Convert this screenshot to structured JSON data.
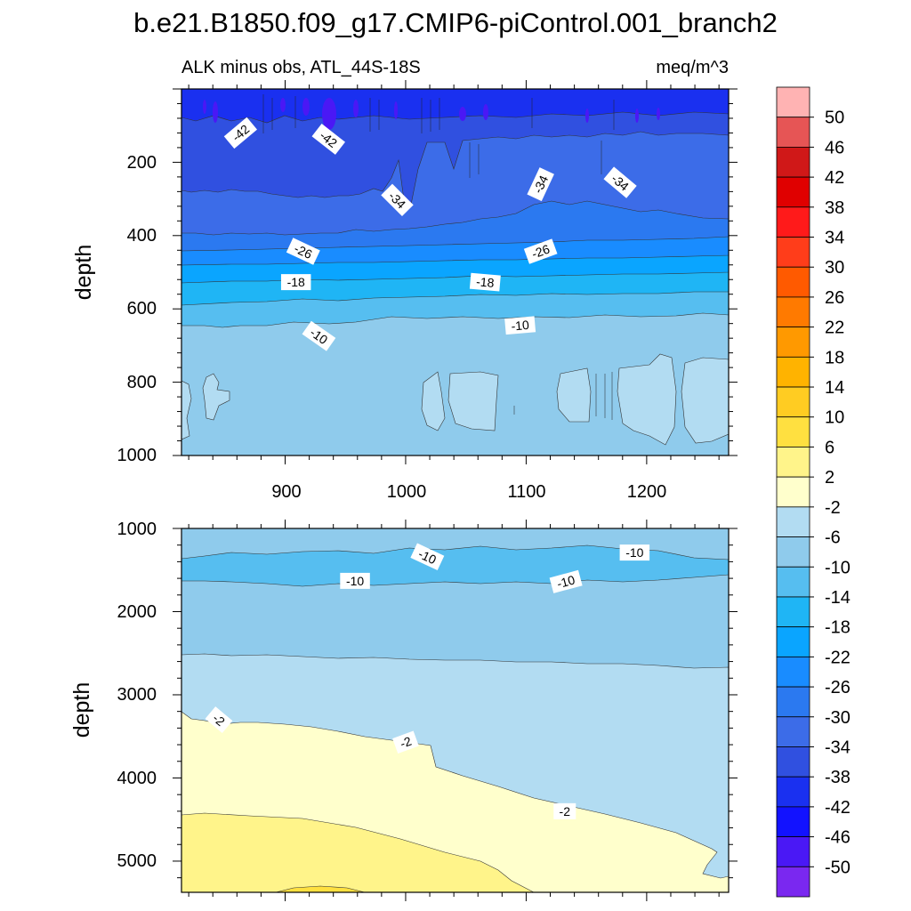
{
  "chart_data": {
    "type": "contour",
    "title": "b.e21.B1850.f09_g17.CMIP6-piControl.001_branch2",
    "subtitle_left": "ALK minus obs, ATL_44S-18S",
    "subtitle_right": "meq/m^3",
    "colorbar": {
      "labels": [
        "50",
        "46",
        "42",
        "38",
        "34",
        "30",
        "26",
        "22",
        "18",
        "14",
        "10",
        "6",
        "2",
        "-2",
        "-6",
        "-10",
        "-14",
        "-18",
        "-22",
        "-26",
        "-30",
        "-34",
        "-38",
        "-42",
        "-46",
        "-50"
      ],
      "colors": [
        "#ffb3b3",
        "#e65555",
        "#d01818",
        "#e00000",
        "#ff1a1a",
        "#ff3d1a",
        "#ff5a00",
        "#ff7a00",
        "#ff9900",
        "#ffb300",
        "#ffcc22",
        "#ffe040",
        "#fff48a",
        "#ffffcc",
        "#b2dcf2",
        "#8fcbec",
        "#56bef0",
        "#1fb5f5",
        "#0aa5ff",
        "#198cff",
        "#2b79f0",
        "#3c6ce8",
        "#3050e0",
        "#1a30f0",
        "#1212ff",
        "#4a18f5",
        "#7a28f0"
      ]
    },
    "panels": [
      {
        "x_ticks": [
          "900",
          "1000",
          "1100",
          "1200"
        ],
        "y_ticks": [
          "200",
          "400",
          "600",
          "800",
          "1000"
        ],
        "ylabel": "depth",
        "xlim": [
          814,
          1268
        ],
        "ylim": [
          1000,
          0
        ],
        "contour_labels": [
          {
            "text": "-42",
            "x": 863,
            "y": 120,
            "angle": -40
          },
          {
            "text": "-42",
            "x": 936,
            "y": 137,
            "angle": 38
          },
          {
            "text": "-34",
            "x": 993,
            "y": 303,
            "angle": 45
          },
          {
            "text": "-34",
            "x": 1112,
            "y": 260,
            "angle": -65
          },
          {
            "text": "-34",
            "x": 1178,
            "y": 255,
            "angle": 40
          },
          {
            "text": "-26",
            "x": 915,
            "y": 443,
            "angle": 25
          },
          {
            "text": "-26",
            "x": 1112,
            "y": 443,
            "angle": -20
          },
          {
            "text": "-18",
            "x": 909,
            "y": 527,
            "angle": 0
          },
          {
            "text": "-18",
            "x": 1066,
            "y": 527,
            "angle": 5
          },
          {
            "text": "-10",
            "x": 928,
            "y": 674,
            "angle": 35
          },
          {
            "text": "-10",
            "x": 1095,
            "y": 645,
            "angle": -5
          }
        ]
      },
      {
        "x_ticks": [
          "900",
          "1000",
          "1100",
          "1200"
        ],
        "y_ticks": [
          "1000",
          "2000",
          "3000",
          "4000",
          "5000"
        ],
        "ylabel": "depth",
        "xlim": [
          814,
          1268
        ],
        "ylim": [
          5375,
          1000
        ],
        "contour_labels": [
          {
            "text": "-10",
            "x": 1018,
            "y": 1340,
            "angle": 25
          },
          {
            "text": "-10",
            "x": 1190,
            "y": 1290,
            "angle": 0
          },
          {
            "text": "-10",
            "x": 958,
            "y": 1630,
            "angle": 0
          },
          {
            "text": "-10",
            "x": 1133,
            "y": 1640,
            "angle": -15
          },
          {
            "text": "-2",
            "x": 845,
            "y": 3300,
            "angle": 40
          },
          {
            "text": "-2",
            "x": 1000,
            "y": 3570,
            "angle": -20
          },
          {
            "text": "-2",
            "x": 1132,
            "y": 4400,
            "angle": 0
          }
        ]
      }
    ]
  }
}
